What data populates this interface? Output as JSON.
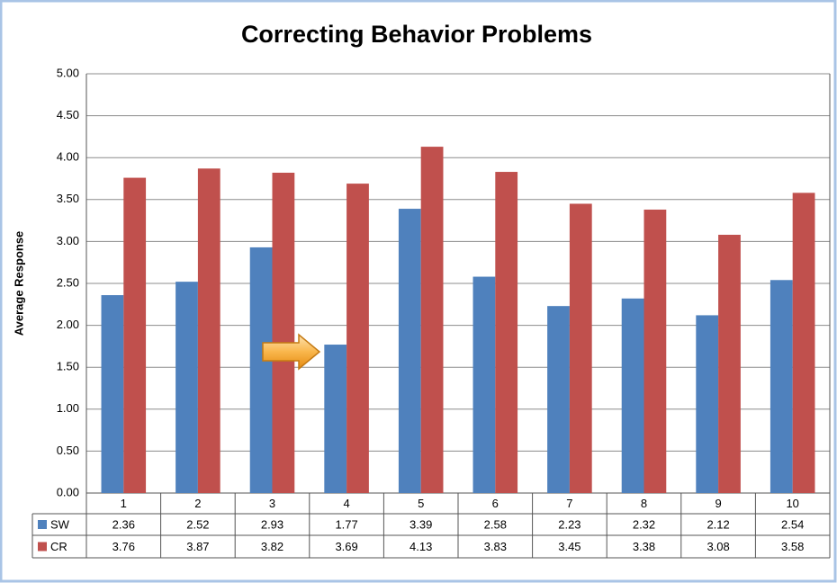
{
  "chart_data": {
    "type": "bar",
    "title": "Correcting Behavior Problems",
    "y_label": "Average Response",
    "categories": [
      "1",
      "2",
      "3",
      "4",
      "5",
      "6",
      "7",
      "8",
      "9",
      "10"
    ],
    "series": [
      {
        "name": "SW",
        "color": "#4f81bd",
        "values": [
          2.36,
          2.52,
          2.93,
          1.77,
          3.39,
          2.58,
          2.23,
          2.32,
          2.12,
          2.54
        ]
      },
      {
        "name": "CR",
        "color": "#c0504d",
        "values": [
          3.76,
          3.87,
          3.82,
          3.69,
          4.13,
          3.83,
          3.45,
          3.38,
          3.08,
          3.58
        ]
      }
    ],
    "ylim": [
      0,
      5
    ],
    "yticks": [
      {
        "value": 0,
        "label": "0.00"
      },
      {
        "value": 0.5,
        "label": "0.50"
      },
      {
        "value": 1,
        "label": "1.00"
      },
      {
        "value": 1.5,
        "label": "1.50"
      },
      {
        "value": 2,
        "label": "2.00"
      },
      {
        "value": 2.5,
        "label": "2.50"
      },
      {
        "value": 3,
        "label": "3.00"
      },
      {
        "value": 3.5,
        "label": "3.50"
      },
      {
        "value": 4,
        "label": "4.00"
      },
      {
        "value": 4.5,
        "label": "4.50"
      },
      {
        "value": 5,
        "label": "5.00"
      }
    ],
    "grid": true
  }
}
